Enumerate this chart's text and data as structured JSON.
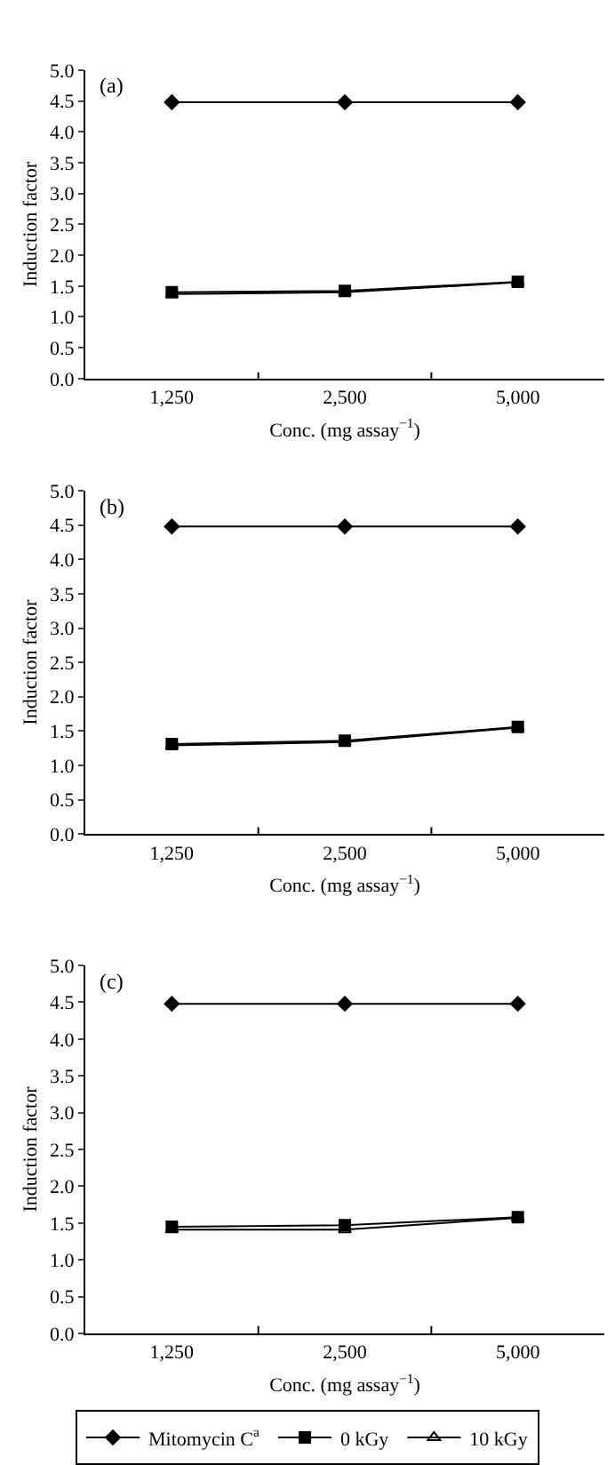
{
  "chart_data": [
    {
      "type": "line",
      "annotations": [
        "(a)"
      ],
      "xlabel": "Conc. (mg assay$^{−1}$)",
      "ylabel": "Induction factor",
      "categories": [
        "1,250",
        "2,500",
        "5,000"
      ],
      "ylim": [
        0,
        5
      ],
      "yticks": [
        {
          "value": 0,
          "label": "0.0"
        },
        {
          "value": 0.5,
          "label": "0.5"
        },
        {
          "value": 1,
          "label": "1.0"
        },
        {
          "value": 1.5,
          "label": "1.5"
        },
        {
          "value": 2,
          "label": "2.0"
        },
        {
          "value": 2.5,
          "label": "2.5"
        },
        {
          "value": 3,
          "label": "3.0"
        },
        {
          "value": 3.5,
          "label": "3.5"
        },
        {
          "value": 4,
          "label": "4.0"
        },
        {
          "value": 4.5,
          "label": "4.5"
        },
        {
          "value": 5,
          "label": "5.0"
        }
      ],
      "series": [
        {
          "color": "#000000",
          "marker": "diamond",
          "values": [
            4.48,
            4.48,
            4.48
          ]
        },
        {
          "color": "#000000",
          "marker": "square",
          "values": [
            1.4,
            1.42,
            1.57
          ]
        },
        {
          "color": "#000000",
          "marker": "triangle",
          "values": [
            1.37,
            1.4,
            1.56
          ]
        }
      ]
    },
    {
      "type": "line",
      "annotations": [
        "(b)"
      ],
      "xlabel": "Conc. (mg assay$^{−1}$)",
      "ylabel": "Induction factor",
      "categories": [
        "1,250",
        "2,500",
        "5,000"
      ],
      "ylim": [
        0,
        5
      ],
      "yticks": [
        {
          "value": 0,
          "label": "0.0"
        },
        {
          "value": 0.5,
          "label": "0.5"
        },
        {
          "value": 1,
          "label": "1.0"
        },
        {
          "value": 1.5,
          "label": "1.5"
        },
        {
          "value": 2,
          "label": "2.0"
        },
        {
          "value": 2.5,
          "label": "2.5"
        },
        {
          "value": 3,
          "label": "3.0"
        },
        {
          "value": 3.5,
          "label": "3.5"
        },
        {
          "value": 4,
          "label": "4.0"
        },
        {
          "value": 4.5,
          "label": "4.5"
        },
        {
          "value": 5,
          "label": "5.0"
        }
      ],
      "series": [
        {
          "color": "#000000",
          "marker": "diamond",
          "values": [
            4.48,
            4.48,
            4.48
          ]
        },
        {
          "color": "#000000",
          "marker": "square",
          "values": [
            1.31,
            1.36,
            1.56
          ]
        },
        {
          "color": "#000000",
          "marker": "triangle",
          "values": [
            1.29,
            1.34,
            1.55
          ]
        }
      ]
    },
    {
      "type": "line",
      "annotations": [
        "(c)"
      ],
      "xlabel": "Conc. (mg assay$^{−1}$)",
      "ylabel": "Induction factor",
      "categories": [
        "1,250",
        "2,500",
        "5,000"
      ],
      "ylim": [
        0,
        5
      ],
      "yticks": [
        {
          "value": 0,
          "label": "0.0"
        },
        {
          "value": 0.5,
          "label": "0.5"
        },
        {
          "value": 1,
          "label": "1.0"
        },
        {
          "value": 1.5,
          "label": "1.5"
        },
        {
          "value": 2,
          "label": "2.0"
        },
        {
          "value": 2.5,
          "label": "2.5"
        },
        {
          "value": 3,
          "label": "3.0"
        },
        {
          "value": 3.5,
          "label": "3.5"
        },
        {
          "value": 4,
          "label": "4.0"
        },
        {
          "value": 4.5,
          "label": "4.5"
        },
        {
          "value": 5,
          "label": "5.0"
        }
      ],
      "legend": "bottom",
      "series": [
        {
          "name": "Mitomycin C$^{a}$",
          "color": "#000000",
          "marker": "diamond",
          "values": [
            4.48,
            4.48,
            4.48
          ]
        },
        {
          "name": "0 kGy",
          "color": "#000000",
          "marker": "square",
          "values": [
            1.45,
            1.47,
            1.58
          ]
        },
        {
          "name": "10 kGy",
          "color": "#000000",
          "marker": "triangle",
          "values": [
            1.41,
            1.41,
            1.57
          ]
        }
      ]
    }
  ]
}
